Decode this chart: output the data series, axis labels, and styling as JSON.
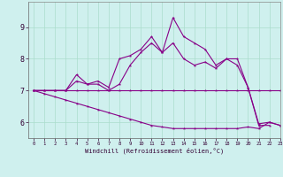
{
  "xlabel": "Windchill (Refroidissement éolien,°C)",
  "bg_color": "#cff0ee",
  "grid_color": "#aaddcc",
  "line_color": "#880088",
  "xlim": [
    -0.5,
    23
  ],
  "ylim": [
    5.5,
    9.8
  ],
  "yticks": [
    6,
    7,
    8,
    9
  ],
  "xticks": [
    0,
    1,
    2,
    3,
    4,
    5,
    6,
    7,
    8,
    9,
    10,
    11,
    12,
    13,
    14,
    15,
    16,
    17,
    18,
    19,
    20,
    21,
    22,
    23
  ],
  "series": [
    [
      7.0,
      7.0,
      7.0,
      7.0,
      7.5,
      7.2,
      7.3,
      7.1,
      8.0,
      8.1,
      8.3,
      8.7,
      8.2,
      9.3,
      8.7,
      8.5,
      8.3,
      7.8,
      8.0,
      8.0,
      7.1,
      5.9,
      5.9,
      null
    ],
    [
      7.0,
      7.0,
      7.0,
      7.0,
      7.0,
      7.0,
      7.0,
      7.0,
      7.0,
      7.0,
      7.0,
      7.0,
      7.0,
      7.0,
      7.0,
      7.0,
      7.0,
      7.0,
      7.0,
      7.0,
      7.0,
      7.0,
      7.0,
      7.0
    ],
    [
      7.0,
      7.0,
      7.0,
      7.0,
      7.3,
      7.2,
      7.2,
      7.0,
      7.2,
      7.8,
      8.2,
      8.5,
      8.2,
      8.5,
      8.0,
      7.8,
      7.9,
      7.7,
      8.0,
      7.8,
      7.1,
      5.95,
      6.0,
      5.9
    ],
    [
      7.0,
      6.9,
      6.8,
      6.7,
      6.6,
      6.5,
      6.4,
      6.3,
      6.2,
      6.1,
      6.0,
      5.9,
      5.85,
      5.8,
      5.8,
      5.8,
      5.8,
      5.8,
      5.8,
      5.8,
      5.85,
      5.8,
      6.0,
      5.9
    ]
  ]
}
